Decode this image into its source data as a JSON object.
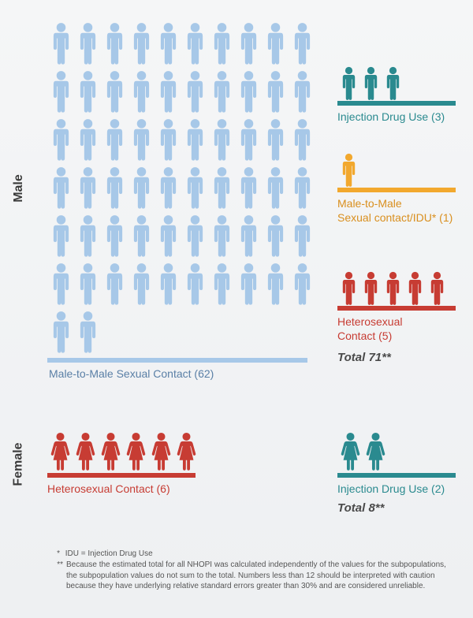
{
  "colors": {
    "light_blue": "#a7c8e8",
    "teal": "#2a8a8f",
    "orange": "#f2a82e",
    "red": "#c73c33",
    "label_blue": "#5a7fa6",
    "label_teal": "#2a8a8f",
    "label_orange": "#d98f1e",
    "label_red": "#c73c33",
    "text_dark": "#3a3a3a"
  },
  "male": {
    "label": "Male",
    "groups": {
      "msm": {
        "count": 62,
        "per_row": 10,
        "label": "Male-to-Male Sexual Contact (62)"
      },
      "idu": {
        "count": 3,
        "label": "Injection Drug Use (3)"
      },
      "msm_idu": {
        "count": 1,
        "label_line1": "Male-to-Male",
        "label_line2": "Sexual contact/IDU* (1)"
      },
      "hetero": {
        "count": 5,
        "label_line1": "Heterosexual",
        "label_line2": "Contact (5)"
      }
    },
    "total": "Total 71**"
  },
  "female": {
    "label": "Female",
    "groups": {
      "hetero": {
        "count": 6,
        "label": "Heterosexual Contact (6)"
      },
      "idu": {
        "count": 2,
        "label": "Injection Drug Use (2)"
      }
    },
    "total": "Total 8**"
  },
  "footnotes": {
    "line1_prefix": "*",
    "line1": "IDU = Injection Drug Use",
    "line2_prefix": "**",
    "line2": "Because the estimated total for all NHOPI was calculated independently of the values for the subpopulations, the subpopulation values do not sum to the total. Numbers less than 12 should be interpreted with caution because they have underlying relative standard errors greater than 30% and are considered unreliable."
  },
  "icon": {
    "male_w": 33,
    "male_h": 55,
    "side_male_w": 27,
    "side_male_h": 44,
    "female_w": 31,
    "female_h": 50
  }
}
